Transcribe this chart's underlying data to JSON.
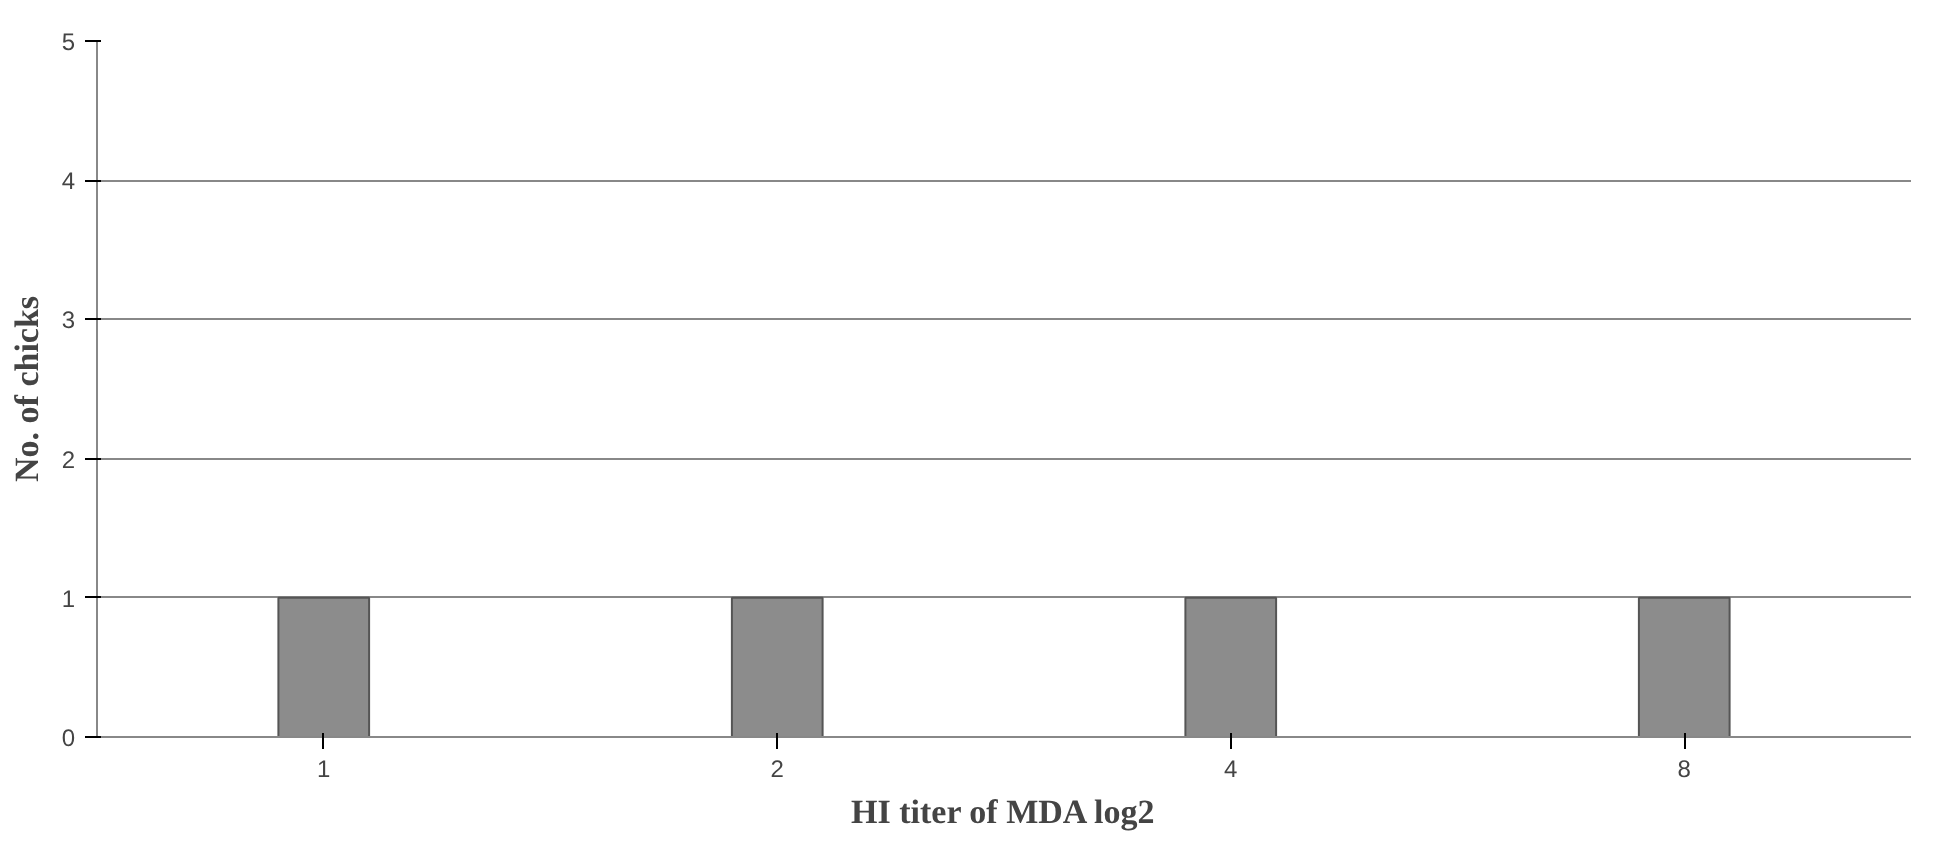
{
  "chart_data": {
    "type": "bar",
    "xlabel": "HI titer of MDA log2",
    "ylabel": "No. of chicks",
    "categories": [
      "1",
      "2",
      "4",
      "8"
    ],
    "values": [
      1,
      1,
      1,
      1
    ],
    "color": "#8c8c8c",
    "ylim": [
      0,
      5
    ],
    "yticks": [
      0,
      1,
      2,
      3,
      4,
      5
    ],
    "grid": "y"
  }
}
